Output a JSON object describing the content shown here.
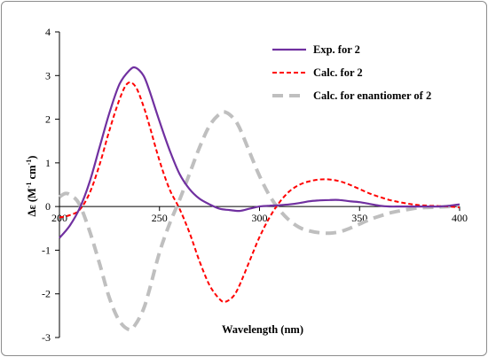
{
  "chart_data": {
    "type": "line",
    "xlabel": "Wavelength (nm)",
    "ylabel_main": "Δε (M",
    "ylabel_sup1": "-1",
    "ylabel_mid": " cm",
    "ylabel_sup2": "-1",
    "ylabel_end": ")",
    "xlim": [
      200,
      400
    ],
    "ylim": [
      -3,
      4
    ],
    "xticks": [
      "200",
      "250",
      "300",
      "350",
      "400"
    ],
    "yticks": [
      "4",
      "3",
      "2",
      "1",
      "0",
      "-1",
      "-2",
      "-3"
    ],
    "grid": false,
    "legend_position": "top-right",
    "series": [
      {
        "name": "Exp. for 2",
        "color": "#7030a0",
        "style": "solid",
        "x": [
          200,
          205,
          210,
          215,
          220,
          225,
          230,
          235,
          238,
          242,
          245,
          250,
          255,
          260,
          265,
          270,
          275,
          280,
          285,
          290,
          295,
          300,
          305,
          310,
          315,
          320,
          325,
          330,
          335,
          340,
          345,
          350,
          355,
          360,
          365,
          370,
          375,
          380,
          385,
          390,
          395,
          400
        ],
        "y": [
          -0.72,
          -0.45,
          -0.05,
          0.55,
          1.35,
          2.15,
          2.8,
          3.12,
          3.18,
          3.0,
          2.65,
          1.95,
          1.3,
          0.75,
          0.4,
          0.18,
          0.05,
          -0.05,
          -0.08,
          -0.1,
          -0.05,
          0.0,
          0.02,
          0.03,
          0.05,
          0.08,
          0.12,
          0.14,
          0.15,
          0.15,
          0.12,
          0.1,
          0.06,
          0.02,
          0.0,
          0.0,
          0.0,
          0.0,
          0.0,
          0.0,
          0.02,
          0.05
        ]
      },
      {
        "name": "Calc. for 2",
        "color": "#ff0000",
        "style": "dashed",
        "x": [
          200,
          205,
          210,
          215,
          220,
          225,
          230,
          234,
          238,
          242,
          245,
          250,
          255,
          260,
          265,
          270,
          275,
          280,
          283,
          287,
          290,
          295,
          300,
          305,
          310,
          315,
          320,
          325,
          330,
          335,
          340,
          345,
          350,
          355,
          360,
          365,
          370,
          375,
          380,
          385,
          390,
          395,
          400
        ],
        "y": [
          -0.25,
          -0.2,
          -0.08,
          0.3,
          0.95,
          1.75,
          2.45,
          2.82,
          2.75,
          2.3,
          1.85,
          1.05,
          0.4,
          -0.05,
          -0.6,
          -1.25,
          -1.8,
          -2.12,
          -2.18,
          -2.05,
          -1.8,
          -1.25,
          -0.7,
          -0.25,
          0.1,
          0.35,
          0.5,
          0.58,
          0.62,
          0.62,
          0.58,
          0.5,
          0.4,
          0.3,
          0.22,
          0.15,
          0.1,
          0.06,
          0.03,
          0.02,
          0.01,
          0.0,
          -0.02
        ]
      },
      {
        "name": "Calc. for enantiomer of 2",
        "color": "#bfbfbf",
        "style": "dashed",
        "x": [
          200,
          203,
          206,
          210,
          215,
          220,
          225,
          230,
          235,
          238,
          242,
          245,
          250,
          255,
          260,
          265,
          270,
          275,
          280,
          283,
          287,
          290,
          295,
          300,
          305,
          310,
          315,
          320,
          325,
          330,
          335,
          340,
          345,
          350,
          355,
          360,
          365,
          370,
          375,
          380,
          385,
          390,
          395,
          400
        ],
        "y": [
          0.22,
          0.3,
          0.25,
          0.05,
          -0.55,
          -1.3,
          -2.1,
          -2.62,
          -2.82,
          -2.7,
          -2.35,
          -1.9,
          -1.05,
          -0.4,
          0.15,
          0.75,
          1.35,
          1.85,
          2.12,
          2.16,
          2.02,
          1.8,
          1.25,
          0.7,
          0.25,
          -0.08,
          -0.32,
          -0.48,
          -0.56,
          -0.6,
          -0.61,
          -0.58,
          -0.5,
          -0.4,
          -0.3,
          -0.22,
          -0.15,
          -0.1,
          -0.06,
          -0.03,
          -0.02,
          -0.01,
          0.0,
          0.02
        ]
      }
    ]
  }
}
